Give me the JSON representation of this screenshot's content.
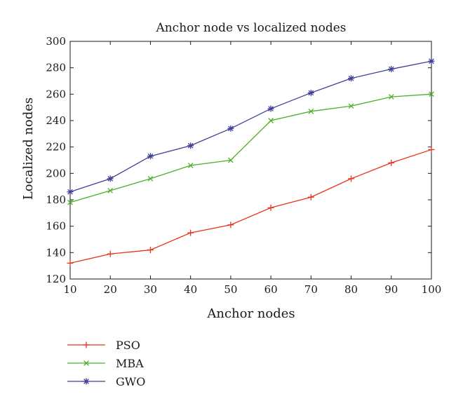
{
  "chart_data": {
    "type": "line",
    "title": "Anchor node vs localized nodes",
    "xlabel": "Anchor nodes",
    "ylabel": "Localized nodes",
    "x": [
      10,
      20,
      30,
      40,
      50,
      60,
      70,
      80,
      90,
      100
    ],
    "xlim": [
      10,
      100
    ],
    "ylim": [
      120,
      300
    ],
    "xticks": [
      "10",
      "20",
      "30",
      "40",
      "50",
      "60",
      "70",
      "80",
      "90",
      "100"
    ],
    "yticks": [
      "120",
      "140",
      "160",
      "180",
      "200",
      "220",
      "240",
      "260",
      "280",
      "300"
    ],
    "grid": false,
    "legend_position": "bottom-left",
    "series": [
      {
        "name": "PSO",
        "color": "#e8321e",
        "marker": "plus",
        "values": [
          132,
          139,
          142,
          155,
          161,
          174,
          182,
          196,
          208,
          218
        ]
      },
      {
        "name": "MBA",
        "color": "#4caf2a",
        "marker": "x",
        "values": [
          178,
          187,
          196,
          206,
          210,
          240,
          247,
          251,
          258,
          260
        ]
      },
      {
        "name": "GWO",
        "color": "#3f3f96",
        "marker": "star",
        "values": [
          186,
          196,
          213,
          221,
          234,
          249,
          261,
          272,
          279,
          285
        ]
      }
    ]
  }
}
